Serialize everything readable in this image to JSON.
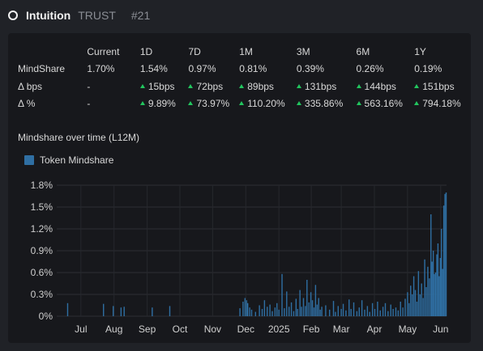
{
  "header": {
    "name": "Intuition",
    "ticker": "TRUST",
    "rank": "#21"
  },
  "stats": {
    "columns": [
      "Current",
      "1D",
      "7D",
      "1M",
      "3M",
      "6M",
      "1Y"
    ],
    "rows": [
      {
        "label": "MindShare",
        "values": [
          "1.70%",
          "1.54%",
          "0.97%",
          "0.81%",
          "0.39%",
          "0.26%",
          "0.19%"
        ]
      },
      {
        "label": "Δ bps",
        "values": [
          "-",
          "15bps",
          "72bps",
          "89bps",
          "131bps",
          "144bps",
          "151bps"
        ]
      },
      {
        "label": "Δ %",
        "values": [
          "-",
          "9.89%",
          "73.97%",
          "110.20%",
          "335.86%",
          "563.16%",
          "794.18%"
        ]
      }
    ]
  },
  "chart_title": "Mindshare over time (L12M)",
  "colors": {
    "bar": "#2f6fa3",
    "up": "#22c55e"
  },
  "chart_data": {
    "type": "bar",
    "legend": "top-left",
    "grid": true,
    "series": [
      {
        "name": "Token Mindshare"
      }
    ],
    "y_ticks": [
      "1.8%",
      "1.5%",
      "1.2%",
      "0.9%",
      "0.6%",
      "0.3%",
      "0%"
    ],
    "ylim": [
      0,
      1.8
    ],
    "x_ticks": [
      "Jul",
      "Aug",
      "Sep",
      "Oct",
      "Nov",
      "Dec",
      "2025",
      "Feb",
      "Mar",
      "Apr",
      "May",
      "Jun"
    ],
    "points": [
      [
        0.028,
        0.18
      ],
      [
        0.12,
        0.17
      ],
      [
        0.145,
        0.14
      ],
      [
        0.165,
        0.12
      ],
      [
        0.173,
        0.13
      ],
      [
        0.245,
        0.12
      ],
      [
        0.29,
        0.14
      ],
      [
        0.47,
        0.11
      ],
      [
        0.478,
        0.2
      ],
      [
        0.483,
        0.25
      ],
      [
        0.487,
        0.22
      ],
      [
        0.49,
        0.18
      ],
      [
        0.495,
        0.12
      ],
      [
        0.5,
        0.09
      ],
      [
        0.51,
        0.06
      ],
      [
        0.52,
        0.15
      ],
      [
        0.527,
        0.1
      ],
      [
        0.533,
        0.22
      ],
      [
        0.54,
        0.13
      ],
      [
        0.547,
        0.16
      ],
      [
        0.553,
        0.07
      ],
      [
        0.56,
        0.12
      ],
      [
        0.565,
        0.18
      ],
      [
        0.57,
        0.09
      ],
      [
        0.578,
        0.58
      ],
      [
        0.584,
        0.11
      ],
      [
        0.59,
        0.34
      ],
      [
        0.596,
        0.13
      ],
      [
        0.602,
        0.19
      ],
      [
        0.608,
        0.07
      ],
      [
        0.614,
        0.24
      ],
      [
        0.618,
        0.1
      ],
      [
        0.624,
        0.36
      ],
      [
        0.628,
        0.13
      ],
      [
        0.633,
        0.25
      ],
      [
        0.638,
        0.14
      ],
      [
        0.642,
        0.5
      ],
      [
        0.647,
        0.19
      ],
      [
        0.652,
        0.33
      ],
      [
        0.656,
        0.22
      ],
      [
        0.66,
        0.12
      ],
      [
        0.664,
        0.43
      ],
      [
        0.668,
        0.16
      ],
      [
        0.672,
        0.25
      ],
      [
        0.676,
        0.09
      ],
      [
        0.68,
        0.13
      ],
      [
        0.69,
        0.15
      ],
      [
        0.7,
        0.09
      ],
      [
        0.71,
        0.21
      ],
      [
        0.715,
        0.06
      ],
      [
        0.722,
        0.14
      ],
      [
        0.73,
        0.1
      ],
      [
        0.735,
        0.17
      ],
      [
        0.742,
        0.08
      ],
      [
        0.75,
        0.23
      ],
      [
        0.755,
        0.1
      ],
      [
        0.762,
        0.19
      ],
      [
        0.77,
        0.07
      ],
      [
        0.776,
        0.12
      ],
      [
        0.783,
        0.22
      ],
      [
        0.79,
        0.09
      ],
      [
        0.797,
        0.14
      ],
      [
        0.803,
        0.06
      ],
      [
        0.81,
        0.18
      ],
      [
        0.816,
        0.1
      ],
      [
        0.823,
        0.2
      ],
      [
        0.83,
        0.08
      ],
      [
        0.837,
        0.13
      ],
      [
        0.843,
        0.18
      ],
      [
        0.85,
        0.07
      ],
      [
        0.857,
        0.16
      ],
      [
        0.863,
        0.1
      ],
      [
        0.87,
        0.12
      ],
      [
        0.876,
        0.08
      ],
      [
        0.882,
        0.2
      ],
      [
        0.888,
        0.12
      ],
      [
        0.894,
        0.24
      ],
      [
        0.9,
        0.33
      ],
      [
        0.904,
        0.18
      ],
      [
        0.908,
        0.42
      ],
      [
        0.912,
        0.3
      ],
      [
        0.916,
        0.55
      ],
      [
        0.92,
        0.36
      ],
      [
        0.924,
        0.2
      ],
      [
        0.928,
        0.62
      ],
      [
        0.932,
        0.3
      ],
      [
        0.936,
        0.45
      ],
      [
        0.94,
        0.25
      ],
      [
        0.944,
        0.78
      ],
      [
        0.948,
        0.4
      ],
      [
        0.952,
        0.68
      ],
      [
        0.956,
        0.52
      ],
      [
        0.96,
        1.4
      ],
      [
        0.963,
        0.75
      ],
      [
        0.966,
        0.9
      ],
      [
        0.969,
        0.58
      ],
      [
        0.972,
        0.6
      ],
      [
        0.975,
        0.85
      ],
      [
        0.978,
        1.0
      ],
      [
        0.981,
        0.55
      ],
      [
        0.984,
        0.8
      ],
      [
        0.987,
        1.2
      ],
      [
        0.99,
        0.65
      ],
      [
        0.993,
        1.52
      ],
      [
        0.996,
        1.68
      ],
      [
        0.999,
        1.7
      ]
    ]
  }
}
